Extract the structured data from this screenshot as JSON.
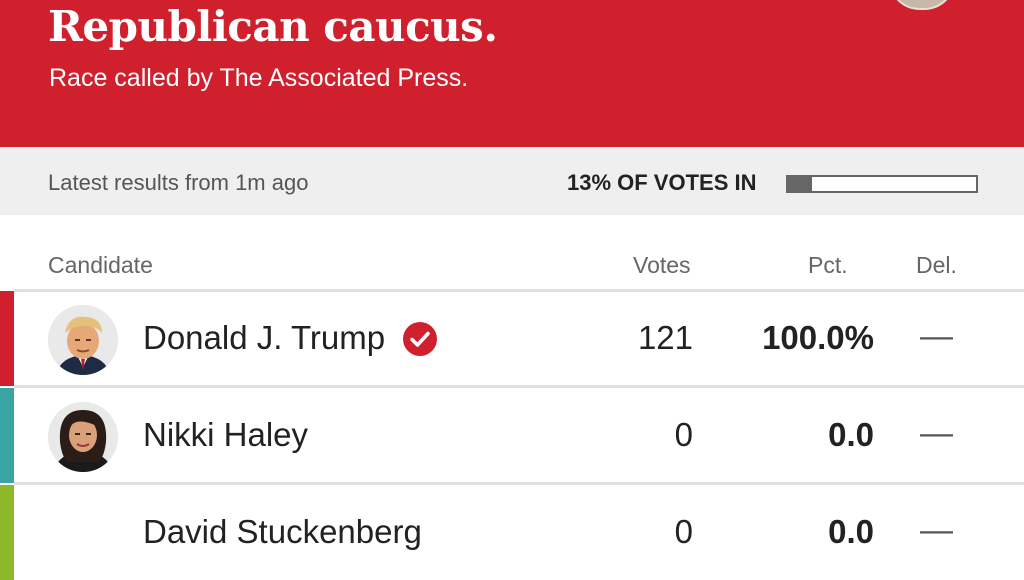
{
  "header": {
    "title": "Republican caucus.",
    "subtitle": "Race called by The Associated Press."
  },
  "status": {
    "latest": "Latest results from 1m ago",
    "votes_in_label": "13% OF VOTES IN",
    "votes_in_fraction": 0.13
  },
  "table": {
    "columns": {
      "candidate": "Candidate",
      "votes": "Votes",
      "pct": "Pct.",
      "del": "Del."
    },
    "rows": [
      {
        "name": "Donald J. Trump",
        "votes": "121",
        "pct": "100.0%",
        "del": "—",
        "winner": true,
        "color": "#d0202d"
      },
      {
        "name": "Nikki Haley",
        "votes": "0",
        "pct": "0.0",
        "del": "—",
        "winner": false,
        "color": "#3aa3a3"
      },
      {
        "name": "David Stuckenberg",
        "votes": "0",
        "pct": "0.0",
        "del": "—",
        "winner": false,
        "color": "#8cb82a"
      }
    ]
  },
  "colors": {
    "header_bg": "#d0202d",
    "status_bg": "#efefef",
    "winner_check": "#d0202d"
  }
}
